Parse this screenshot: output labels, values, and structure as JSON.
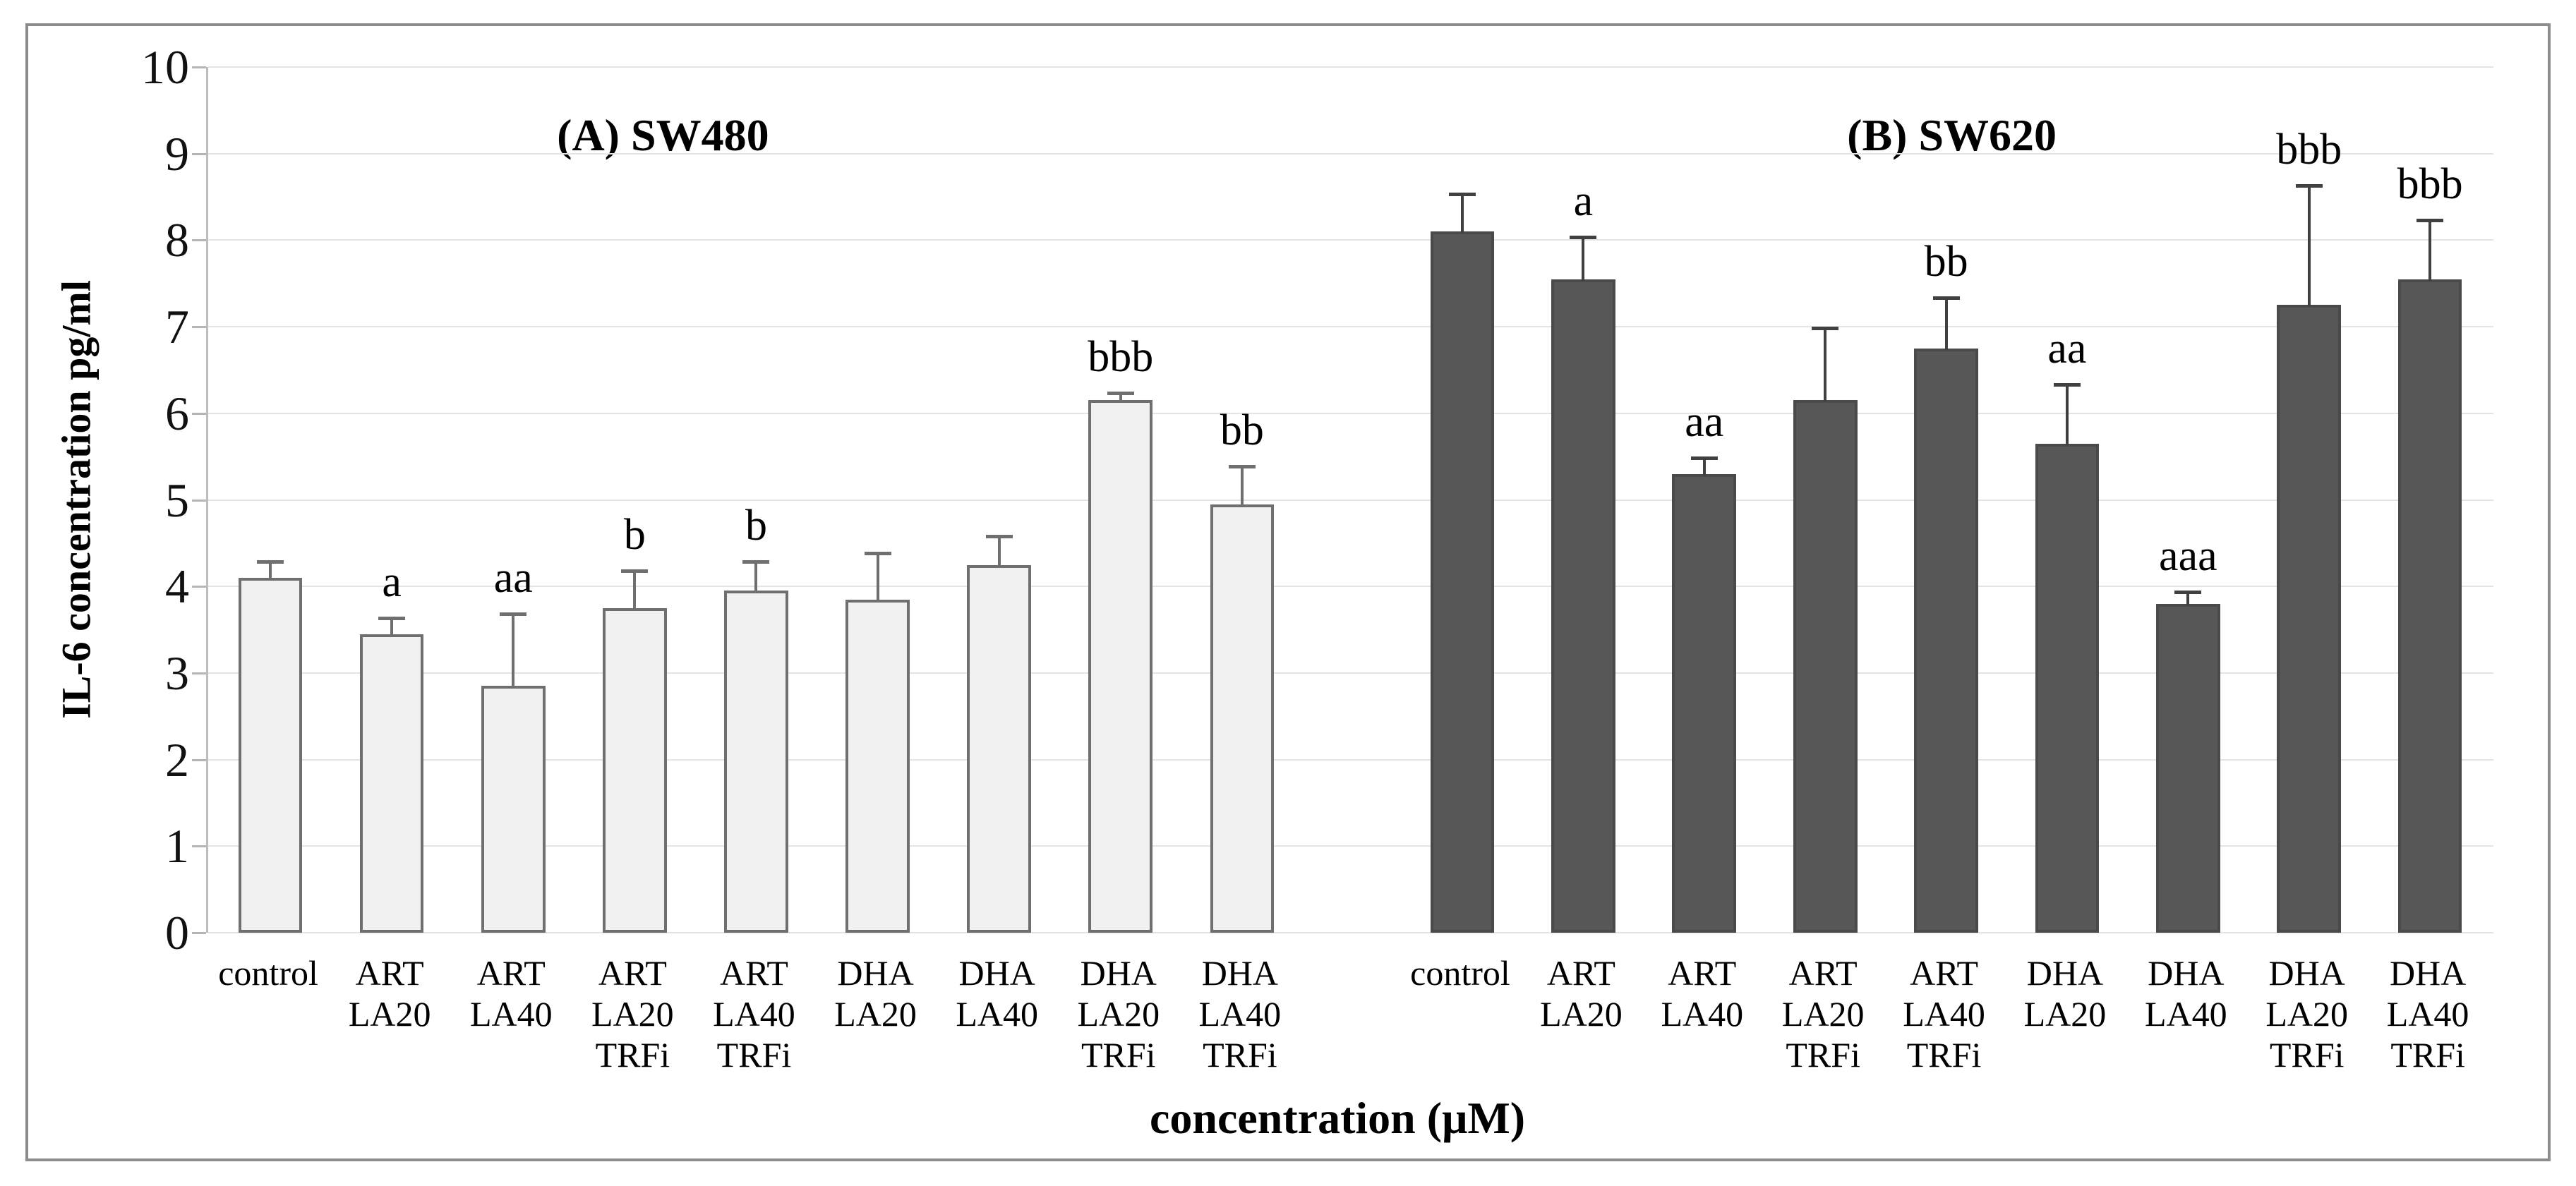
{
  "figure": {
    "background": "#ffffff",
    "border_color": "#8c8c8c",
    "gridline_color": "#e4e4e4",
    "axis_line_color": "#bdbdbd"
  },
  "chart_data": {
    "type": "bar",
    "title": "",
    "xlabel": "concentration (μM)",
    "ylabel": "IL-6 concentration pg/ml",
    "ylim": [
      0,
      10
    ],
    "yticks": [
      0,
      1,
      2,
      3,
      4,
      5,
      6,
      7,
      8,
      9,
      10
    ],
    "grid": "horizontal",
    "legend": "none",
    "error_bars": "plus-direction with caps",
    "categories": [
      "control",
      "ART LA20",
      "ART LA40",
      "ART LA20 TRFi",
      "ART LA40 TRFi",
      "DHA LA20",
      "DHA LA40",
      "DHA LA20 TRFi",
      "DHA LA40 TRFi"
    ],
    "categories_lines": [
      [
        "control"
      ],
      [
        "ART",
        "LA20"
      ],
      [
        "ART",
        "LA40"
      ],
      [
        "ART",
        "LA20",
        "TRFi"
      ],
      [
        "ART",
        "LA40",
        "TRFi"
      ],
      [
        "DHA",
        "LA20"
      ],
      [
        "DHA",
        "LA40"
      ],
      [
        "DHA",
        "LA20",
        "TRFi"
      ],
      [
        "DHA",
        "LA40",
        "TRFi"
      ]
    ],
    "panels": [
      {
        "label": "(A) SW480",
        "bar_fill": "#f1f1f1",
        "bar_border": "#6f6f6f",
        "error_color": "#6f6f6f",
        "values": [
          4.1,
          3.45,
          2.85,
          3.75,
          3.95,
          3.85,
          4.25,
          6.15,
          4.95
        ],
        "errors": [
          0.2,
          0.2,
          0.85,
          0.45,
          0.35,
          0.55,
          0.35,
          0.1,
          0.45
        ],
        "annotations": [
          "",
          "a",
          "aa",
          "b",
          "b",
          "",
          "",
          "bbb",
          "bb"
        ]
      },
      {
        "label": "(B) SW620",
        "bar_fill": "#575757",
        "bar_border": "#4a4a4a",
        "error_color": "#404040",
        "values": [
          8.1,
          7.55,
          5.3,
          6.15,
          6.75,
          5.65,
          3.8,
          7.25,
          7.55
        ],
        "errors": [
          0.45,
          0.5,
          0.2,
          0.85,
          0.6,
          0.7,
          0.15,
          1.4,
          0.7
        ],
        "annotations": [
          "",
          "a",
          "aa",
          "",
          "bb",
          "aa",
          "aaa",
          "bbb",
          "bbb"
        ]
      }
    ]
  }
}
